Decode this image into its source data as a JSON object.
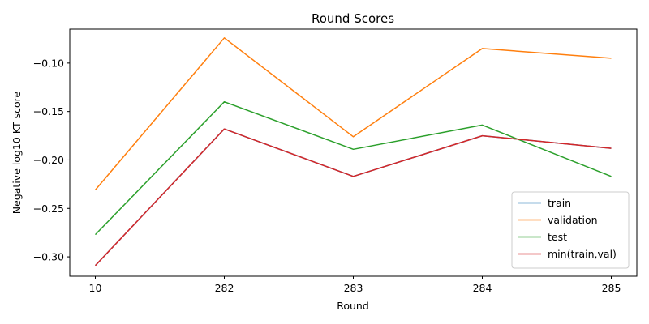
{
  "chart_data": {
    "type": "line",
    "title": "Round Scores",
    "xlabel": "Round",
    "ylabel": "Negative log10 KT score",
    "categories": [
      "10",
      "282",
      "283",
      "284",
      "285"
    ],
    "ylim": [
      -0.32,
      -0.065
    ],
    "yticks": [
      -0.3,
      -0.25,
      -0.2,
      -0.15,
      -0.1
    ],
    "ytick_labels": [
      "−0.30",
      "−0.25",
      "−0.20",
      "−0.15",
      "−0.10"
    ],
    "legend_position": "lower-right",
    "grid": false,
    "series": [
      {
        "name": "train",
        "color": "#1f77b4",
        "values": [
          -0.309,
          -0.168,
          -0.217,
          -0.175,
          -0.188
        ]
      },
      {
        "name": "validation",
        "color": "#ff7f0e",
        "values": [
          -0.231,
          -0.074,
          -0.176,
          -0.085,
          -0.095
        ]
      },
      {
        "name": "test",
        "color": "#2ca02c",
        "values": [
          -0.277,
          -0.14,
          -0.189,
          -0.164,
          -0.217
        ]
      },
      {
        "name": "min(train,val)",
        "color": "#d62728",
        "values": [
          -0.309,
          -0.168,
          -0.217,
          -0.175,
          -0.188
        ]
      }
    ]
  }
}
